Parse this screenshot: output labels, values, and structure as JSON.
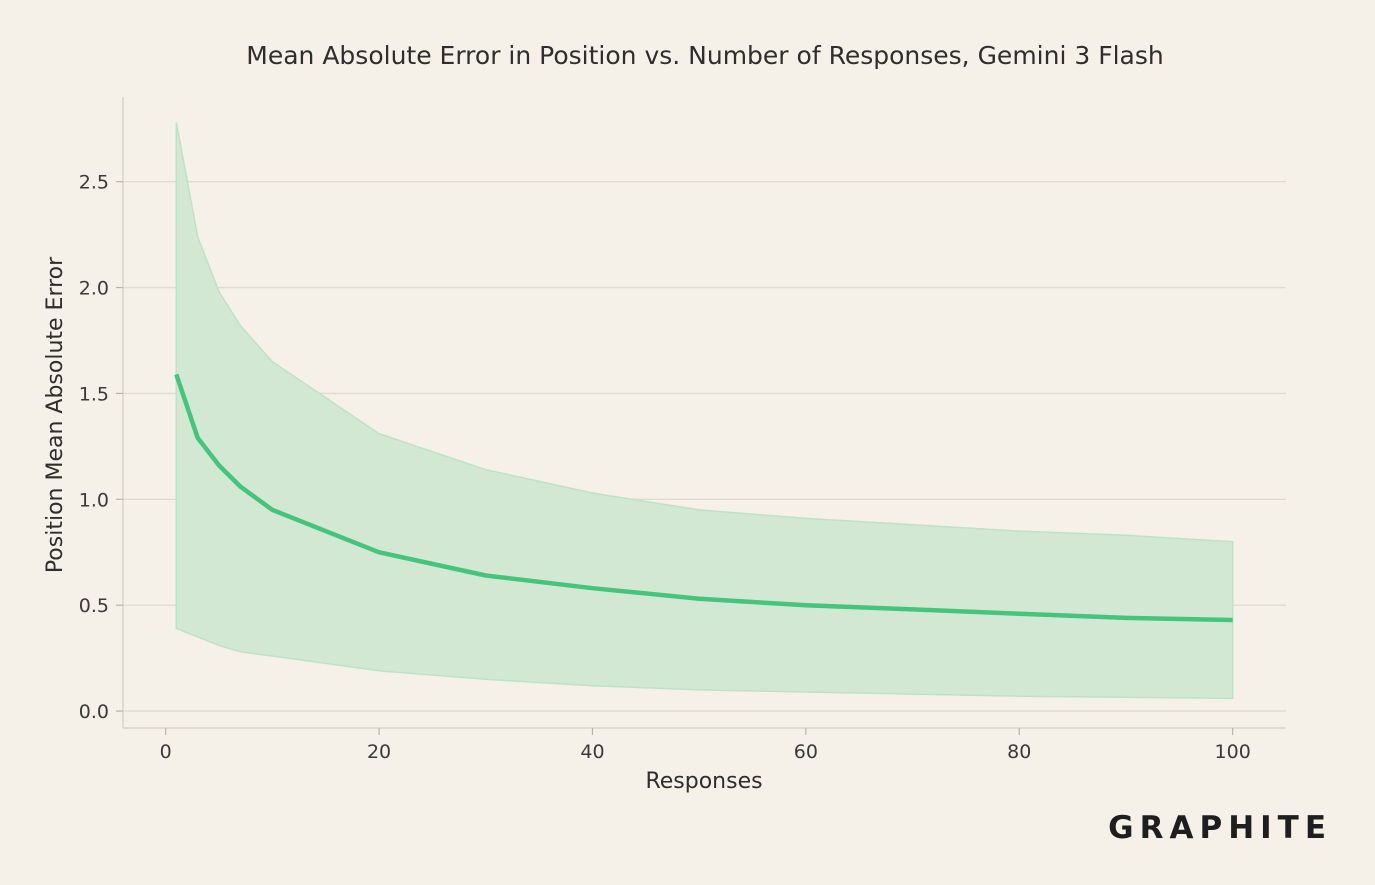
{
  "colors": {
    "background": "#f5f0e8",
    "line": "#45c47d",
    "band_fill": "#d2e8d3",
    "band_edge": "#bfe2c6",
    "text": "#2e2e2e"
  },
  "brand": {
    "logo": "GRAPHITE"
  },
  "chart_data": {
    "type": "line",
    "title": "Mean Absolute Error in Position vs. Number of Responses, Gemini 3 Flash",
    "xlabel": "Responses",
    "ylabel": "Position Mean Absolute Error",
    "xlim": [
      -4,
      105
    ],
    "ylim": [
      -0.08,
      2.9
    ],
    "xticks": [
      0,
      20,
      40,
      60,
      80,
      100
    ],
    "xtick_labels": [
      "0",
      "20",
      "40",
      "60",
      "80",
      "100"
    ],
    "yticks": [
      0.0,
      0.5,
      1.0,
      1.5,
      2.0,
      2.5
    ],
    "ytick_labels": [
      "0.0",
      "0.5",
      "1.0",
      "1.5",
      "2.0",
      "2.5"
    ],
    "grid": "y",
    "x": [
      1,
      3,
      5,
      7,
      10,
      20,
      30,
      40,
      50,
      60,
      70,
      80,
      90,
      100
    ],
    "series": [
      {
        "type": "line",
        "values": [
          1.59,
          1.29,
          1.16,
          1.06,
          0.95,
          0.75,
          0.64,
          0.58,
          0.53,
          0.5,
          0.48,
          0.46,
          0.44,
          0.43
        ]
      },
      {
        "type": "band",
        "upper": [
          2.78,
          2.24,
          1.98,
          1.82,
          1.65,
          1.31,
          1.14,
          1.03,
          0.95,
          0.91,
          0.88,
          0.85,
          0.83,
          0.8
        ],
        "lower": [
          0.39,
          0.35,
          0.31,
          0.28,
          0.26,
          0.19,
          0.15,
          0.12,
          0.1,
          0.09,
          0.08,
          0.07,
          0.065,
          0.06
        ]
      }
    ]
  }
}
